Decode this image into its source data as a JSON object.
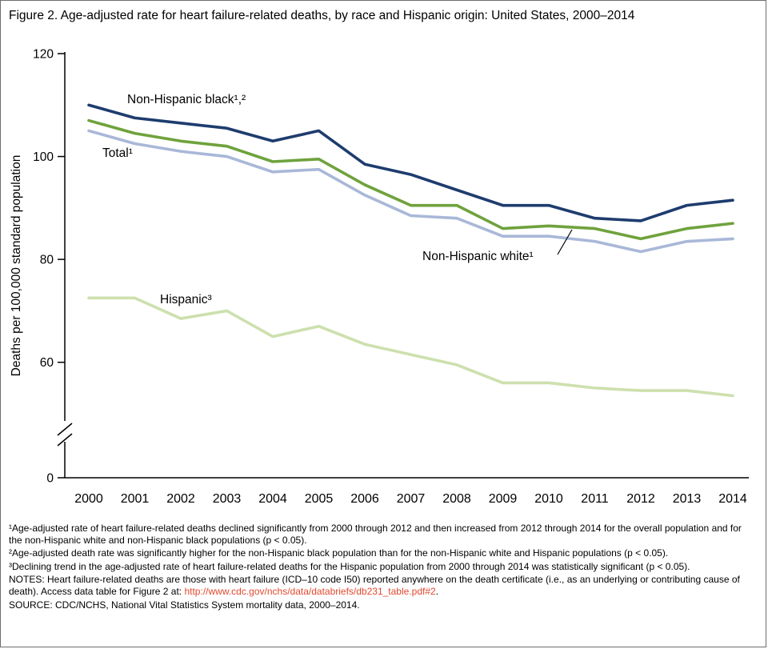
{
  "title": "Figure 2. Age-adjusted rate for heart failure-related deaths, by race and Hispanic origin: United States, 2000–2014",
  "chart_data": {
    "type": "line",
    "title": "Age-adjusted rate for heart failure-related deaths, by race and Hispanic origin: United States, 2000–2014",
    "xlabel": "",
    "ylabel": "Deaths per 100,000 standard population",
    "ylim": [
      0,
      120
    ],
    "axis_break": true,
    "axis_break_between": [
      0,
      50
    ],
    "yticks": [
      0,
      60,
      80,
      100,
      120
    ],
    "grid": false,
    "legend_position": "inline-annotations",
    "categories": [
      2000,
      2001,
      2002,
      2003,
      2004,
      2005,
      2006,
      2007,
      2008,
      2009,
      2010,
      2011,
      2012,
      2013,
      2014
    ],
    "series": [
      {
        "id": "non-hispanic-black",
        "name": "Non-Hispanic black",
        "label": "Non-Hispanic black¹,²",
        "color": "#1e3c6e",
        "values": [
          110,
          107.5,
          106.5,
          105.5,
          103,
          105,
          98.5,
          96.5,
          93.5,
          90.5,
          90.5,
          88,
          87.5,
          90.5,
          91.5
        ]
      },
      {
        "id": "non-hispanic-white",
        "name": "Non-Hispanic white",
        "label": "Non-Hispanic white¹",
        "color": "#6fa23d",
        "values": [
          107,
          104.5,
          103,
          102,
          99,
          99.5,
          94.5,
          90.5,
          90.5,
          86,
          86.5,
          86,
          84,
          86,
          87
        ]
      },
      {
        "id": "total",
        "name": "Total",
        "label": "Total¹",
        "color": "#a9b8d8",
        "values": [
          105,
          102.5,
          101,
          100,
          97,
          97.5,
          92.5,
          88.5,
          88,
          84.5,
          84.5,
          83.5,
          81.5,
          83.5,
          84
        ]
      },
      {
        "id": "hispanic",
        "name": "Hispanic",
        "label": "Hispanic³",
        "color": "#cde0ae",
        "values": [
          72.5,
          72.5,
          68.5,
          70,
          65,
          67,
          63.5,
          61.5,
          59.5,
          56,
          56,
          55,
          54.5,
          54.5,
          53.5
        ]
      }
    ]
  },
  "footnotes": [
    "¹Age-adjusted rate of heart failure-related deaths declined significantly from 2000 through 2012 and then increased from 2012 through 2014 for the overall population and for the non-Hispanic white and non-Hispanic black populations (p < 0.05).",
    "²Age-adjusted death rate was significantly higher for the non-Hispanic black population than for the non-Hispanic white and Hispanic populations (p < 0.05).",
    "³Declining trend in the age-adjusted rate of heart failure-related deaths for the Hispanic population from 2000 through 2014 was statistically significant (p < 0.05)."
  ],
  "notes": {
    "prefix": "NOTES: Heart failure-related deaths are those with heart failure (ICD–10 code I50) reported anywhere on the death certificate (i.e., as an underlying or contributing cause of death). Access data table for Figure 2 at: ",
    "link_text": "http://www.cdc.gov/nchs/data/databriefs/db231_table.pdf#2",
    "suffix": "."
  },
  "source": "SOURCE: CDC/NCHS, National Vital Statistics System mortality data, 2000–2014.",
  "colors": {
    "axis": "#000000",
    "link": "#e2492f",
    "text": "#000000"
  }
}
